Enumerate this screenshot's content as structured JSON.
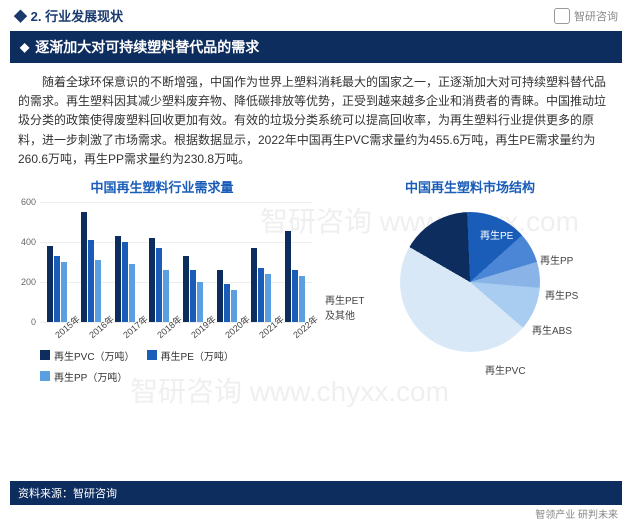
{
  "header": {
    "section": "2. 行业发展现状",
    "brand": "智研咨询"
  },
  "banner": {
    "title": "逐渐加大对可持续塑料替代品的需求"
  },
  "paragraph": "随着全球环保意识的不断增强，中国作为世界上塑料消耗最大的国家之一，正逐渐加大对可持续塑料替代品的需求。再生塑料因其减少塑料废弃物、降低碳排放等优势，正受到越来越多企业和消费者的青睐。中国推动垃圾分类的政策使得废塑料回收更加有效。有效的垃圾分类系统可以提高回收率，为再生塑料行业提供更多的原料，进一步刺激了市场需求。根据数据显示，2022年中国再生PVC需求量约为455.6万吨，再生PE需求量约为260.6万吨，再生PP需求量约为230.8万吨。",
  "bar_chart": {
    "type": "bar",
    "title": "中国再生塑料行业需求量",
    "y": {
      "min": 0,
      "max": 600,
      "ticks": [
        0,
        200,
        400,
        600
      ]
    },
    "categories": [
      "2015年",
      "2016年",
      "2017年",
      "2018年",
      "2019年",
      "2020年",
      "2021年",
      "2022年"
    ],
    "series": [
      {
        "name": "再生PVC（万吨）",
        "color": "#0d2d5f",
        "values": [
          380,
          550,
          430,
          420,
          330,
          260,
          370,
          455
        ]
      },
      {
        "name": "再生PE（万吨）",
        "color": "#1a5db8",
        "values": [
          330,
          410,
          400,
          370,
          260,
          190,
          270,
          260
        ]
      },
      {
        "name": "再生PP（万吨）",
        "color": "#5aa0e0",
        "values": [
          300,
          310,
          290,
          260,
          200,
          160,
          240,
          230
        ]
      }
    ],
    "grid_color": "#eeeeee",
    "label_fontsize": 9
  },
  "pie_chart": {
    "type": "pie",
    "title": "中国再生塑料市场结构",
    "slices": [
      {
        "name": "再生PE",
        "pct": 16,
        "color": "#0d2d5f"
      },
      {
        "name": "再生PP",
        "pct": 14,
        "color": "#1a5db8"
      },
      {
        "name": "再生PS",
        "pct": 7,
        "color": "#4b86d6"
      },
      {
        "name": "再生ABS",
        "pct": 6,
        "color": "#8ab4e8"
      },
      {
        "name": "再生PVC",
        "pct": 10,
        "color": "#a9cdf0"
      },
      {
        "name": "再生PET及其他",
        "pct": 47,
        "color": "#d9e8f7"
      }
    ],
    "label_fontsize": 10
  },
  "source": "资料来源：智研咨询",
  "footer_brand": "智领产业 研判未来",
  "watermark": "智研咨询 www.chyxx.com"
}
